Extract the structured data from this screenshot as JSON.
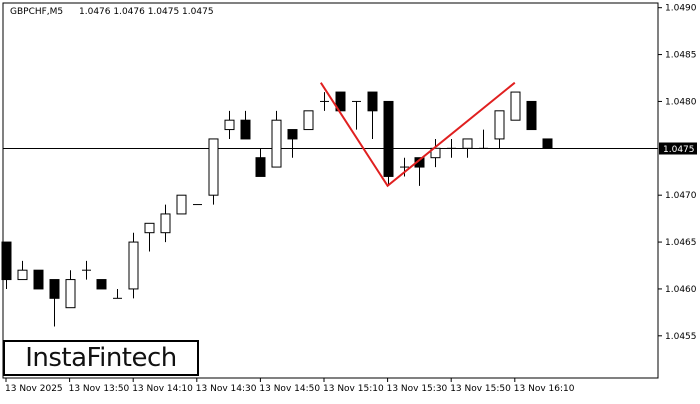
{
  "header": {
    "symbol": "GBPCHF,M5",
    "ohlc": "1.0476 1.0476 1.0475 1.0475"
  },
  "logo": {
    "text": "InstaFintech"
  },
  "colors": {
    "pattern_line": "#e02020",
    "bull_candle": "#ffffff",
    "bear_candle": "#000000",
    "price_label_bg": "#000000",
    "price_label_text": "#ffffff"
  },
  "chart_data": {
    "type": "candlestick",
    "title": "GBPCHF,M5",
    "x_tick_labels": [
      "13 Nov 2025",
      "13 Nov 13:50",
      "13 Nov 14:10",
      "13 Nov 14:30",
      "13 Nov 14:50",
      "13 Nov 15:10",
      "13 Nov 15:30",
      "13 Nov 15:50",
      "13 Nov 16:10"
    ],
    "y_tick_labels": [
      "1.0490",
      "1.0485",
      "1.0480",
      "1.0470",
      "1.0465",
      "1.0460",
      "1.0455"
    ],
    "ylim": [
      1.04505,
      1.04905
    ],
    "current_price": 1.0475,
    "current_price_label": "1.0475",
    "candles": [
      {
        "o": 1.0465,
        "h": 1.0465,
        "l": 1.046,
        "c": 1.0461
      },
      {
        "o": 1.0461,
        "h": 1.0463,
        "l": 1.0461,
        "c": 1.0462
      },
      {
        "o": 1.0462,
        "h": 1.0462,
        "l": 1.046,
        "c": 1.046
      },
      {
        "o": 1.0461,
        "h": 1.0461,
        "l": 1.0456,
        "c": 1.0459
      },
      {
        "o": 1.0458,
        "h": 1.0462,
        "l": 1.0458,
        "c": 1.0461
      },
      {
        "o": 1.0462,
        "h": 1.0463,
        "l": 1.0461,
        "c": 1.0462
      },
      {
        "o": 1.0461,
        "h": 1.0461,
        "l": 1.046,
        "c": 1.046
      },
      {
        "o": 1.0459,
        "h": 1.046,
        "l": 1.0459,
        "c": 1.0459
      },
      {
        "o": 1.046,
        "h": 1.0466,
        "l": 1.0459,
        "c": 1.0465
      },
      {
        "o": 1.0466,
        "h": 1.0467,
        "l": 1.0464,
        "c": 1.0467
      },
      {
        "o": 1.0466,
        "h": 1.0469,
        "l": 1.0465,
        "c": 1.0468
      },
      {
        "o": 1.0468,
        "h": 1.047,
        "l": 1.0468,
        "c": 1.047
      },
      {
        "o": 1.0469,
        "h": 1.0469,
        "l": 1.0469,
        "c": 1.0469
      },
      {
        "o": 1.047,
        "h": 1.0476,
        "l": 1.0469,
        "c": 1.0476
      },
      {
        "o": 1.0477,
        "h": 1.0479,
        "l": 1.0476,
        "c": 1.0478
      },
      {
        "o": 1.0478,
        "h": 1.0479,
        "l": 1.0476,
        "c": 1.0476
      },
      {
        "o": 1.0474,
        "h": 1.0475,
        "l": 1.0472,
        "c": 1.0472
      },
      {
        "o": 1.0473,
        "h": 1.0479,
        "l": 1.0473,
        "c": 1.0478
      },
      {
        "o": 1.0477,
        "h": 1.0477,
        "l": 1.0474,
        "c": 1.0476
      },
      {
        "o": 1.0477,
        "h": 1.0479,
        "l": 1.0477,
        "c": 1.0479
      },
      {
        "o": 1.048,
        "h": 1.0481,
        "l": 1.0479,
        "c": 1.048
      },
      {
        "o": 1.0481,
        "h": 1.0481,
        "l": 1.0479,
        "c": 1.0479
      },
      {
        "o": 1.048,
        "h": 1.048,
        "l": 1.0477,
        "c": 1.048
      },
      {
        "o": 1.0481,
        "h": 1.0481,
        "l": 1.0476,
        "c": 1.0479
      },
      {
        "o": 1.048,
        "h": 1.048,
        "l": 1.0471,
        "c": 1.0472
      },
      {
        "o": 1.0473,
        "h": 1.0474,
        "l": 1.0472,
        "c": 1.0473
      },
      {
        "o": 1.0474,
        "h": 1.0474,
        "l": 1.0471,
        "c": 1.0473
      },
      {
        "o": 1.0474,
        "h": 1.0476,
        "l": 1.0473,
        "c": 1.0475
      },
      {
        "o": 1.0475,
        "h": 1.0476,
        "l": 1.0474,
        "c": 1.0475
      },
      {
        "o": 1.0475,
        "h": 1.0476,
        "l": 1.0474,
        "c": 1.0476
      },
      {
        "o": 1.0475,
        "h": 1.0477,
        "l": 1.0475,
        "c": 1.0475
      },
      {
        "o": 1.0476,
        "h": 1.0479,
        "l": 1.0475,
        "c": 1.0479
      },
      {
        "o": 1.0478,
        "h": 1.0481,
        "l": 1.0478,
        "c": 1.0481
      },
      {
        "o": 1.048,
        "h": 1.048,
        "l": 1.0477,
        "c": 1.0477
      },
      {
        "o": 1.0476,
        "h": 1.0476,
        "l": 1.0475,
        "c": 1.0475
      }
    ],
    "pattern_line": [
      {
        "candle": 19.8,
        "price": 1.0482
      },
      {
        "candle": 24,
        "price": 1.0471
      },
      {
        "candle": 32,
        "price": 1.0482
      }
    ]
  }
}
